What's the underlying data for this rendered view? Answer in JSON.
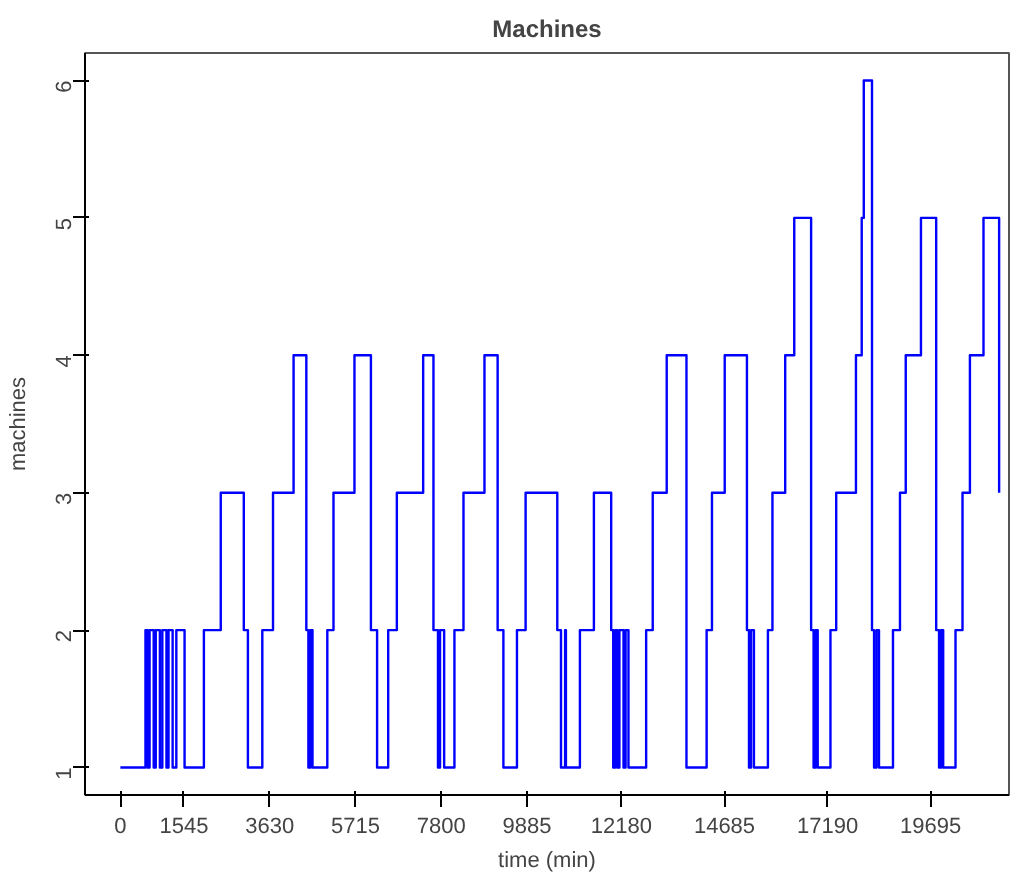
{
  "chart_data": {
    "type": "step",
    "title": "Machines",
    "xlabel": "time (min)",
    "ylabel": "machines",
    "x": [
      0,
      610,
      660,
      710,
      810,
      860,
      960,
      1020,
      1120,
      1170,
      1270,
      1360,
      1560,
      2030,
      2440,
      3000,
      3100,
      3450,
      3710,
      4210,
      4520,
      4570,
      4620,
      4670,
      5030,
      5180,
      5690,
      6090,
      6240,
      6510,
      6720,
      7360,
      7610,
      7720,
      7770,
      7870,
      8120,
      8340,
      8850,
      9170,
      9310,
      9640,
      9850,
      10620,
      10710,
      10810,
      10830,
      11170,
      11510,
      11930,
      11980,
      12030,
      12080,
      12130,
      12230,
      12280,
      12350,
      12780,
      12940,
      13280,
      13760,
      14250,
      14380,
      14690,
      15230,
      15280,
      15330,
      15400,
      15740,
      15850,
      16160,
      16380,
      16790,
      16850,
      16900,
      16950,
      17260,
      17400,
      17880,
      18020,
      18070,
      18270,
      18320,
      18380,
      18440,
      18780,
      18950,
      19090,
      19460,
      19830,
      19900,
      19950,
      20000,
      20300,
      20470,
      20650,
      20980,
      21360
    ],
    "series": [
      {
        "color": "#0000ff",
        "values": [
          1,
          2,
          1,
          2,
          1,
          2,
          1,
          2,
          1,
          2,
          1,
          2,
          1,
          2,
          3,
          2,
          1,
          2,
          3,
          4,
          2,
          1,
          2,
          1,
          2,
          3,
          4,
          2,
          1,
          2,
          3,
          4,
          2,
          1,
          2,
          1,
          2,
          3,
          4,
          2,
          1,
          2,
          3,
          2,
          1,
          2,
          1,
          2,
          3,
          2,
          1,
          2,
          1,
          2,
          1,
          2,
          1,
          2,
          3,
          4,
          1,
          2,
          3,
          4,
          2,
          1,
          2,
          1,
          2,
          3,
          4,
          5,
          2,
          1,
          2,
          1,
          2,
          3,
          4,
          5,
          6,
          2,
          1,
          2,
          1,
          2,
          3,
          4,
          5,
          2,
          1,
          2,
          1,
          2,
          3,
          4,
          5,
          3
        ]
      }
    ],
    "xlim": [
      -860,
      21600
    ],
    "ylim": [
      0.8,
      6.2
    ],
    "xticks": [
      0,
      1545,
      3630,
      5715,
      7800,
      9885,
      12180,
      14685,
      17190,
      19695
    ],
    "yticks": [
      1,
      2,
      3,
      4,
      5,
      6
    ],
    "grid": false
  }
}
